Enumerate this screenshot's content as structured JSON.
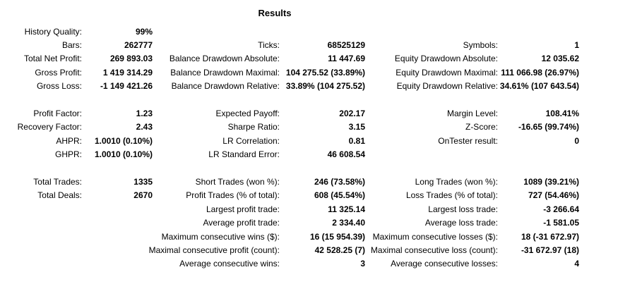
{
  "title": "Results",
  "colors": {
    "background": "#ffffff",
    "text": "#000000"
  },
  "rows": [
    [
      "History Quality:",
      "99%",
      "",
      "",
      "",
      ""
    ],
    [
      "Bars:",
      "262777",
      "Ticks:",
      "68525129",
      "Symbols:",
      "1"
    ],
    [
      "Total Net Profit:",
      "269 893.03",
      "Balance Drawdown Absolute:",
      "11 447.69",
      "Equity Drawdown Absolute:",
      "12 035.62"
    ],
    [
      "Gross Profit:",
      "1 419 314.29",
      "Balance Drawdown Maximal:",
      "104 275.52 (33.89%)",
      "Equity Drawdown Maximal:",
      "111 066.98 (26.97%)"
    ],
    [
      "Gross Loss:",
      "-1 149 421.26",
      "Balance Drawdown Relative:",
      "33.89% (104 275.52)",
      "Equity Drawdown Relative:",
      "34.61% (107 643.54)"
    ],
    null,
    [
      "Profit Factor:",
      "1.23",
      "Expected Payoff:",
      "202.17",
      "Margin Level:",
      "108.41%"
    ],
    [
      "Recovery Factor:",
      "2.43",
      "Sharpe Ratio:",
      "3.15",
      "Z-Score:",
      "-16.65 (99.74%)"
    ],
    [
      "AHPR:",
      "1.0010 (0.10%)",
      "LR Correlation:",
      "0.81",
      "OnTester result:",
      "0"
    ],
    [
      "GHPR:",
      "1.0010 (0.10%)",
      "LR Standard Error:",
      "46 608.54",
      "",
      ""
    ],
    null,
    [
      "Total Trades:",
      "1335",
      "Short Trades (won %):",
      "246 (73.58%)",
      "Long Trades (won %):",
      "1089 (39.21%)"
    ],
    [
      "Total Deals:",
      "2670",
      "Profit Trades (% of total):",
      "608 (45.54%)",
      "Loss Trades (% of total):",
      "727 (54.46%)"
    ],
    [
      "",
      "",
      "Largest profit trade:",
      "11 325.14",
      "Largest loss trade:",
      "-3 266.64"
    ],
    [
      "",
      "",
      "Average profit trade:",
      "2 334.40",
      "Average loss trade:",
      "-1 581.05"
    ],
    [
      "",
      "",
      "Maximum consecutive wins ($):",
      "16 (15 954.39)",
      "Maximum consecutive losses ($):",
      "18 (-31 672.97)"
    ],
    [
      "",
      "",
      "Maximal consecutive profit (count):",
      "42 528.25 (7)",
      "Maximal consecutive loss (count):",
      "-31 672.97 (18)"
    ],
    [
      "",
      "",
      "Average consecutive wins:",
      "3",
      "Average consecutive losses:",
      "4"
    ]
  ]
}
